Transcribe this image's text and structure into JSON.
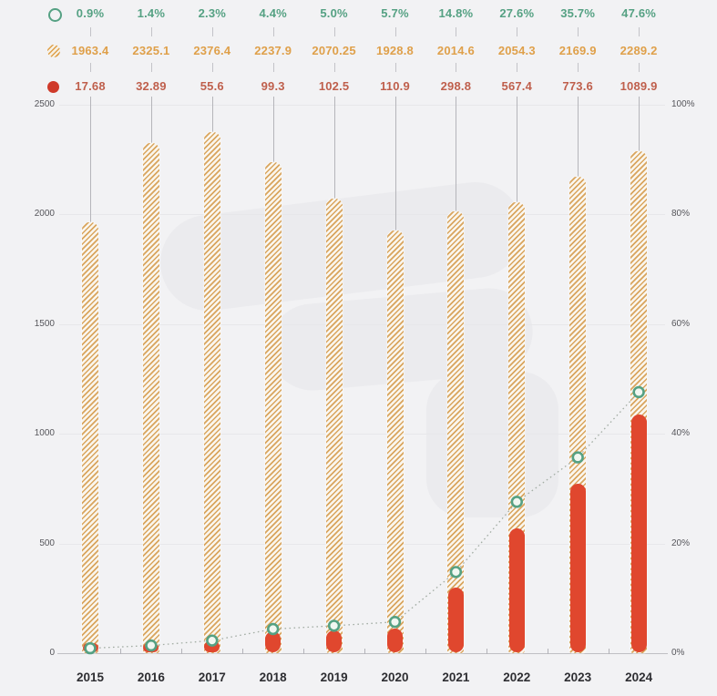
{
  "legend_table": {
    "rows": [
      {
        "icon": "circle-outline-icon",
        "series": "growth-rate",
        "text_color": "#55a183",
        "values": [
          "0.9%",
          "1.4%",
          "2.3%",
          "4.4%",
          "5.0%",
          "5.7%",
          "14.8%",
          "27.6%",
          "35.7%",
          "47.6%"
        ]
      },
      {
        "icon": "hatched-circle-icon",
        "series": "total-volume",
        "text_color": "#dfa04a",
        "values": [
          "1963.4",
          "2325.1",
          "2376.4",
          "2237.9",
          "2070.25",
          "1928.8",
          "2014.6",
          "2054.3",
          "2169.9",
          "2289.2"
        ]
      },
      {
        "icon": "filled-circle-icon",
        "series": "segment-volume",
        "text_color": "#bf5f4c",
        "values": [
          "17.68",
          "32.89",
          "55.6",
          "99.3",
          "102.5",
          "110.9",
          "298.8",
          "567.4",
          "773.6",
          "1089.9"
        ]
      }
    ]
  },
  "chart_data": {
    "type": "bar",
    "subtype": "combo-bar-line-dual-axis",
    "categories": [
      "2015",
      "2016",
      "2017",
      "2018",
      "2019",
      "2020",
      "2021",
      "2022",
      "2023",
      "2024"
    ],
    "series": [
      {
        "name": "growth-rate-line",
        "type": "line",
        "axis": "right",
        "unit": "%",
        "color": "#55a183",
        "marker": "open-circle",
        "line_style": "dotted",
        "values": [
          0.9,
          1.4,
          2.3,
          4.4,
          5.0,
          5.7,
          14.8,
          27.6,
          35.7,
          47.6
        ]
      },
      {
        "name": "total-volume-bar",
        "type": "bar",
        "axis": "left",
        "color": "#d9a55e",
        "style": "hatched",
        "values": [
          1963.4,
          2325.1,
          2376.4,
          2237.9,
          2070.25,
          1928.8,
          2014.6,
          2054.3,
          2169.9,
          2289.2
        ]
      },
      {
        "name": "segment-volume-bar",
        "type": "bar",
        "axis": "left",
        "color": "#e0472e",
        "style": "solid-capsule",
        "values": [
          17.68,
          32.89,
          55.6,
          99.3,
          102.5,
          110.9,
          298.8,
          567.4,
          773.6,
          1089.9
        ]
      }
    ],
    "left_axis": {
      "ticks": [
        "0",
        "500",
        "1000",
        "1500",
        "2000",
        "2500"
      ],
      "tick_values": [
        0,
        500,
        1000,
        1500,
        2000,
        2500
      ],
      "max": 2500
    },
    "right_axis": {
      "ticks": [
        "0%",
        "20%",
        "40%",
        "60%",
        "80%",
        "100%"
      ],
      "tick_values": [
        0,
        20,
        40,
        60,
        80,
        100
      ],
      "max": 100
    },
    "grid": true,
    "legend_position": "top-table"
  },
  "colors": {
    "background": "#f2f2f4",
    "green": "#55a183",
    "orange_text": "#dfa04a",
    "hatch_stripe": "#d9a55e",
    "red_bar": "#e0472e",
    "red_text": "#bf5f4c",
    "gridline": "#e7e7ea",
    "axis_line": "#bfbfc4",
    "connector": "#b5b5ba",
    "watermark": "#ebebee"
  }
}
